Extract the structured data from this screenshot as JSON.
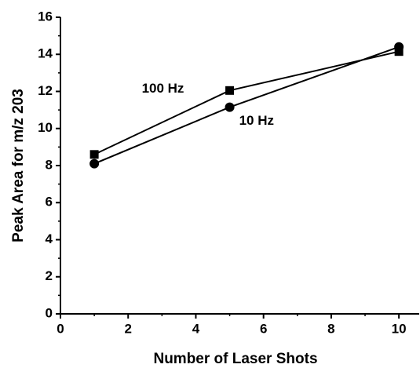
{
  "chart_data": {
    "type": "line",
    "xlabel": "Number of Laser Shots",
    "ylabel": "Peak Area for m/z 203",
    "x": [
      1,
      5,
      10
    ],
    "series": [
      {
        "name": "100 Hz",
        "color": "#000000",
        "marker": "square",
        "values": [
          8.6,
          12.05,
          14.15
        ]
      },
      {
        "name": "10 Hz",
        "color": "#000000",
        "marker": "circle",
        "values": [
          8.1,
          11.15,
          14.4
        ]
      }
    ],
    "xlim": [
      0,
      10.6
    ],
    "xticks": [
      0,
      2,
      4,
      6,
      8,
      10
    ],
    "ylim": [
      0,
      16
    ],
    "yticks": [
      0,
      2,
      4,
      6,
      8,
      10,
      12,
      14,
      16
    ],
    "grid": false
  }
}
